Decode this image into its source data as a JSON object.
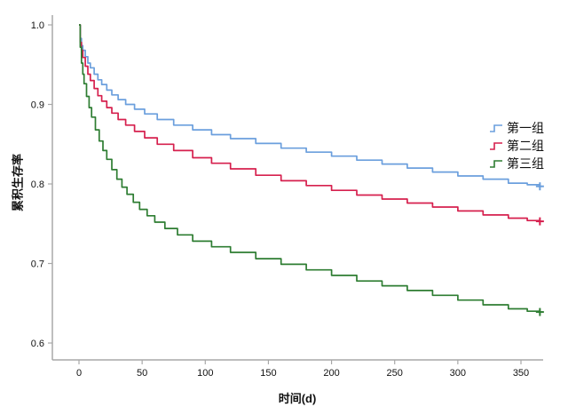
{
  "chart_data": {
    "type": "line",
    "subtype": "kaplan-meier-step-survival",
    "title": "",
    "xlabel": "时间(d)",
    "ylabel": "累积生存率",
    "xlim": [
      0,
      367
    ],
    "ylim": [
      0.6,
      1.0
    ],
    "grid": false,
    "legend_position": "right-middle",
    "axis_color": "#a8a8a8",
    "x_ticks": [
      0,
      50,
      100,
      150,
      200,
      250,
      300,
      350
    ],
    "x_tick_labels": [
      "0",
      "50",
      "100",
      "150",
      "200",
      "250",
      "300",
      "350"
    ],
    "y_ticks": [
      1.0,
      0.9,
      0.8,
      0.7,
      0.6
    ],
    "y_tick_labels": [
      "1.0",
      "0.9",
      "0.8",
      "0.7",
      "0.6"
    ],
    "censor_marker": "+",
    "series": [
      {
        "name": "第一组",
        "color": "#6b9fdd",
        "end_marker": "plus",
        "points": [
          [
            0,
            1.0
          ],
          [
            1,
            0.983
          ],
          [
            2,
            0.974
          ],
          [
            3,
            0.968
          ],
          [
            5,
            0.96
          ],
          [
            7,
            0.952
          ],
          [
            9,
            0.946
          ],
          [
            12,
            0.938
          ],
          [
            15,
            0.931
          ],
          [
            18,
            0.925
          ],
          [
            22,
            0.918
          ],
          [
            26,
            0.912
          ],
          [
            31,
            0.906
          ],
          [
            37,
            0.9
          ],
          [
            44,
            0.894
          ],
          [
            52,
            0.888
          ],
          [
            62,
            0.881
          ],
          [
            75,
            0.874
          ],
          [
            90,
            0.868
          ],
          [
            105,
            0.862
          ],
          [
            120,
            0.857
          ],
          [
            140,
            0.851
          ],
          [
            160,
            0.845
          ],
          [
            180,
            0.84
          ],
          [
            200,
            0.835
          ],
          [
            220,
            0.83
          ],
          [
            240,
            0.825
          ],
          [
            260,
            0.82
          ],
          [
            280,
            0.815
          ],
          [
            300,
            0.81
          ],
          [
            320,
            0.806
          ],
          [
            340,
            0.801
          ],
          [
            355,
            0.799
          ],
          [
            365,
            0.797
          ]
        ]
      },
      {
        "name": "第二组",
        "color": "#d6204e",
        "end_marker": "plus",
        "points": [
          [
            0,
            1.0
          ],
          [
            1,
            0.978
          ],
          [
            2,
            0.968
          ],
          [
            3,
            0.959
          ],
          [
            5,
            0.948
          ],
          [
            7,
            0.938
          ],
          [
            9,
            0.93
          ],
          [
            12,
            0.92
          ],
          [
            15,
            0.911
          ],
          [
            18,
            0.904
          ],
          [
            22,
            0.896
          ],
          [
            26,
            0.889
          ],
          [
            31,
            0.881
          ],
          [
            37,
            0.874
          ],
          [
            44,
            0.866
          ],
          [
            52,
            0.858
          ],
          [
            62,
            0.85
          ],
          [
            75,
            0.842
          ],
          [
            90,
            0.833
          ],
          [
            105,
            0.826
          ],
          [
            120,
            0.819
          ],
          [
            140,
            0.811
          ],
          [
            160,
            0.804
          ],
          [
            180,
            0.798
          ],
          [
            200,
            0.792
          ],
          [
            220,
            0.786
          ],
          [
            240,
            0.781
          ],
          [
            260,
            0.776
          ],
          [
            280,
            0.771
          ],
          [
            300,
            0.766
          ],
          [
            320,
            0.761
          ],
          [
            340,
            0.757
          ],
          [
            355,
            0.754
          ],
          [
            365,
            0.753
          ]
        ]
      },
      {
        "name": "第三组",
        "color": "#2e7d32",
        "end_marker": "plus",
        "points": [
          [
            0,
            1.0
          ],
          [
            1,
            0.972
          ],
          [
            2,
            0.952
          ],
          [
            3,
            0.938
          ],
          [
            4,
            0.926
          ],
          [
            6,
            0.91
          ],
          [
            8,
            0.896
          ],
          [
            10,
            0.884
          ],
          [
            13,
            0.868
          ],
          [
            16,
            0.854
          ],
          [
            19,
            0.842
          ],
          [
            22,
            0.831
          ],
          [
            26,
            0.818
          ],
          [
            30,
            0.806
          ],
          [
            34,
            0.796
          ],
          [
            38,
            0.787
          ],
          [
            43,
            0.777
          ],
          [
            48,
            0.768
          ],
          [
            54,
            0.76
          ],
          [
            60,
            0.752
          ],
          [
            68,
            0.744
          ],
          [
            78,
            0.736
          ],
          [
            90,
            0.728
          ],
          [
            105,
            0.721
          ],
          [
            120,
            0.714
          ],
          [
            140,
            0.706
          ],
          [
            160,
            0.699
          ],
          [
            180,
            0.692
          ],
          [
            200,
            0.685
          ],
          [
            220,
            0.678
          ],
          [
            240,
            0.672
          ],
          [
            260,
            0.666
          ],
          [
            280,
            0.66
          ],
          [
            300,
            0.654
          ],
          [
            320,
            0.648
          ],
          [
            340,
            0.643
          ],
          [
            355,
            0.64
          ],
          [
            365,
            0.639
          ]
        ]
      }
    ]
  }
}
